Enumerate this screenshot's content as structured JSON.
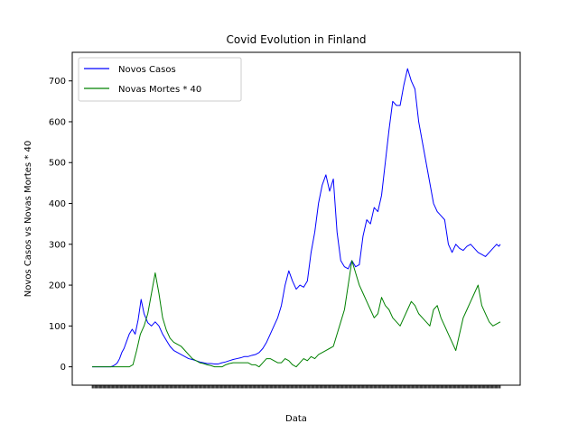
{
  "chart_data": {
    "type": "line",
    "title": "Covid Evolution in Finland",
    "xlabel": "Data",
    "ylabel": "Novos Casos vs Novas Mortes * 40",
    "ylim": [
      -45,
      770
    ],
    "yticks": [
      0,
      100,
      200,
      300,
      400,
      500,
      600,
      700
    ],
    "grid": false,
    "legend": "top-left",
    "series": [
      {
        "name": "Novos Casos",
        "color": "#0000ff",
        "x": [
          0,
          5,
          10,
          15,
          20,
          25,
          28,
          31,
          34,
          37,
          40,
          43,
          46,
          50,
          54,
          58,
          62,
          66,
          70,
          75,
          80,
          85,
          90,
          95,
          100,
          105,
          110,
          115,
          120,
          125,
          130,
          135,
          140,
          145,
          150,
          155,
          160,
          165,
          170,
          175,
          180,
          185,
          190,
          195,
          200,
          205,
          210,
          215,
          220,
          225,
          230,
          235,
          240,
          245,
          250,
          255,
          260,
          265,
          270,
          275,
          280,
          285,
          290,
          295,
          300,
          305,
          310,
          315,
          320,
          325,
          330,
          335,
          340,
          345,
          350,
          355,
          360,
          365,
          370,
          375,
          380,
          385,
          390,
          395,
          400,
          405,
          410,
          415,
          420,
          425,
          430,
          435,
          440,
          445,
          450,
          455,
          460,
          465,
          470,
          475,
          480,
          485,
          490,
          495,
          500,
          505,
          510,
          515,
          520,
          525,
          530,
          535,
          540,
          545,
          548,
          550
        ],
        "values": [
          0,
          0,
          0,
          0,
          0,
          0,
          2,
          5,
          10,
          20,
          35,
          45,
          60,
          80,
          92,
          80,
          115,
          165,
          130,
          108,
          100,
          110,
          100,
          80,
          65,
          50,
          40,
          35,
          30,
          25,
          20,
          18,
          15,
          12,
          10,
          8,
          8,
          7,
          7,
          10,
          12,
          15,
          18,
          20,
          22,
          25,
          25,
          28,
          30,
          35,
          45,
          60,
          80,
          100,
          120,
          150,
          200,
          235,
          210,
          190,
          200,
          195,
          210,
          280,
          330,
          400,
          445,
          470,
          430,
          460,
          330,
          260,
          245,
          240,
          260,
          245,
          250,
          320,
          360,
          350,
          390,
          380,
          420,
          500,
          580,
          650,
          640,
          640,
          690,
          730,
          700,
          680,
          600,
          550,
          500,
          450,
          400,
          380,
          370,
          360,
          300,
          280,
          300,
          290,
          285,
          295,
          300,
          290,
          280,
          275,
          270,
          280,
          290,
          300,
          295,
          300
        ]
      },
      {
        "name": "Novas Mortes * 40",
        "color": "#008000",
        "x": [
          0,
          5,
          10,
          15,
          20,
          25,
          30,
          35,
          40,
          45,
          50,
          55,
          60,
          65,
          70,
          75,
          80,
          85,
          90,
          95,
          100,
          105,
          110,
          115,
          120,
          125,
          130,
          135,
          140,
          145,
          150,
          155,
          160,
          165,
          170,
          175,
          180,
          185,
          190,
          195,
          200,
          205,
          210,
          215,
          220,
          225,
          230,
          235,
          240,
          245,
          250,
          255,
          260,
          265,
          270,
          275,
          280,
          285,
          290,
          295,
          300,
          305,
          310,
          315,
          320,
          325,
          330,
          335,
          340,
          345,
          350,
          355,
          360,
          365,
          370,
          375,
          380,
          385,
          390,
          395,
          400,
          405,
          410,
          415,
          420,
          425,
          430,
          435,
          440,
          445,
          450,
          455,
          460,
          465,
          470,
          475,
          480,
          485,
          490,
          495,
          500,
          505,
          510,
          515,
          520,
          525,
          530,
          535,
          540,
          545,
          548,
          550
        ],
        "values": [
          0,
          0,
          0,
          0,
          0,
          0,
          0,
          0,
          0,
          0,
          0,
          5,
          40,
          80,
          100,
          130,
          180,
          230,
          180,
          120,
          90,
          70,
          60,
          55,
          50,
          40,
          30,
          20,
          15,
          10,
          8,
          5,
          3,
          0,
          0,
          0,
          5,
          8,
          10,
          10,
          10,
          10,
          10,
          5,
          5,
          0,
          10,
          20,
          20,
          15,
          10,
          10,
          20,
          15,
          5,
          0,
          10,
          20,
          15,
          25,
          20,
          30,
          35,
          40,
          45,
          50,
          80,
          110,
          140,
          200,
          260,
          230,
          200,
          180,
          160,
          140,
          120,
          130,
          170,
          150,
          140,
          120,
          110,
          100,
          120,
          140,
          160,
          150,
          130,
          120,
          110,
          100,
          140,
          150,
          120,
          100,
          80,
          60,
          40,
          80,
          120,
          140,
          160,
          180,
          200,
          150,
          130,
          110,
          100,
          105,
          108,
          110
        ]
      }
    ]
  }
}
